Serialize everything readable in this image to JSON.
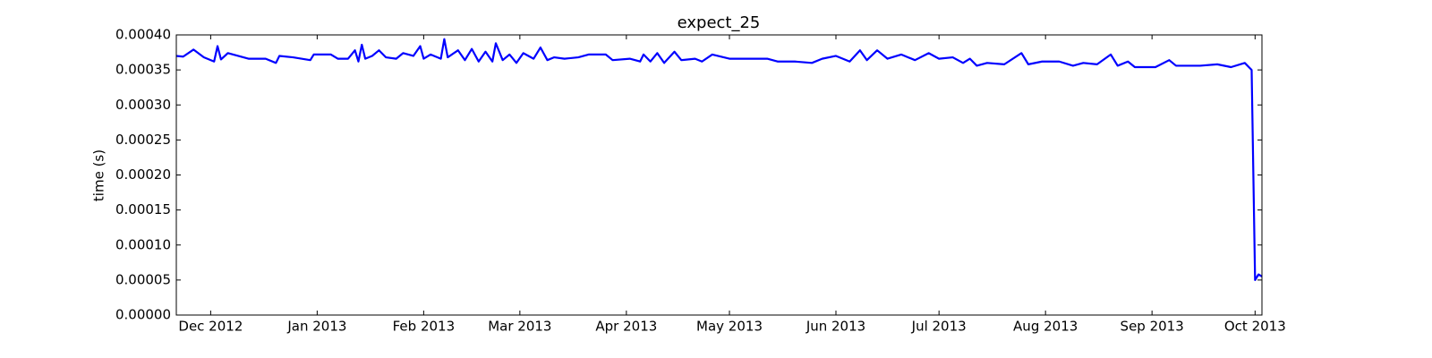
{
  "chart_data": {
    "type": "line",
    "title": "expect_25",
    "y_label": "time (s)",
    "xlim": [
      "2012-11-21",
      "2013-10-03"
    ],
    "xticks": [
      {
        "value": "2012-12-01",
        "label": "Dec 2012"
      },
      {
        "value": "2013-01-01",
        "label": "Jan 2013"
      },
      {
        "value": "2013-02-01",
        "label": "Feb 2013"
      },
      {
        "value": "2013-03-01",
        "label": "Mar 2013"
      },
      {
        "value": "2013-04-01",
        "label": "Apr 2013"
      },
      {
        "value": "2013-05-01",
        "label": "May 2013"
      },
      {
        "value": "2013-06-01",
        "label": "Jun 2013"
      },
      {
        "value": "2013-07-01",
        "label": "Jul 2013"
      },
      {
        "value": "2013-08-01",
        "label": "Aug 2013"
      },
      {
        "value": "2013-09-01",
        "label": "Sep 2013"
      },
      {
        "value": "2013-10-01",
        "label": "Oct 2013"
      }
    ],
    "ylim": [
      0,
      0.0004
    ],
    "yticks": [
      {
        "value": 0,
        "label": "0.00000"
      },
      {
        "value": 5e-05,
        "label": "0.00005"
      },
      {
        "value": 0.0001,
        "label": "0.00010"
      },
      {
        "value": 0.00015,
        "label": "0.00015"
      },
      {
        "value": 0.0002,
        "label": "0.00020"
      },
      {
        "value": 0.00025,
        "label": "0.00025"
      },
      {
        "value": 0.0003,
        "label": "0.00030"
      },
      {
        "value": 0.00035,
        "label": "0.00035"
      },
      {
        "value": 0.0004,
        "label": "0.00040"
      }
    ],
    "grid": false,
    "x": [
      "2012-11-21",
      "2012-11-23",
      "2012-11-26",
      "2012-11-29",
      "2012-12-02",
      "2012-12-03",
      "2012-12-04",
      "2012-12-06",
      "2012-12-09",
      "2012-12-12",
      "2012-12-17",
      "2012-12-20",
      "2012-12-21",
      "2012-12-25",
      "2012-12-30",
      "2012-12-31",
      "2013-01-05",
      "2013-01-07",
      "2013-01-10",
      "2013-01-12",
      "2013-01-13",
      "2013-01-14",
      "2013-01-15",
      "2013-01-17",
      "2013-01-19",
      "2013-01-21",
      "2013-01-24",
      "2013-01-26",
      "2013-01-29",
      "2013-01-31",
      "2013-02-01",
      "2013-02-03",
      "2013-02-06",
      "2013-02-07",
      "2013-02-08",
      "2013-02-11",
      "2013-02-13",
      "2013-02-15",
      "2013-02-17",
      "2013-02-19",
      "2013-02-21",
      "2013-02-22",
      "2013-02-24",
      "2013-02-26",
      "2013-02-28",
      "2013-03-02",
      "2013-03-05",
      "2013-03-07",
      "2013-03-09",
      "2013-03-11",
      "2013-03-14",
      "2013-03-18",
      "2013-03-21",
      "2013-03-26",
      "2013-03-28",
      "2013-04-02",
      "2013-04-05",
      "2013-04-06",
      "2013-04-08",
      "2013-04-10",
      "2013-04-12",
      "2013-04-15",
      "2013-04-17",
      "2013-04-21",
      "2013-04-23",
      "2013-04-26",
      "2013-05-01",
      "2013-05-05",
      "2013-05-12",
      "2013-05-15",
      "2013-05-20",
      "2013-05-25",
      "2013-05-28",
      "2013-06-01",
      "2013-06-05",
      "2013-06-08",
      "2013-06-10",
      "2013-06-13",
      "2013-06-16",
      "2013-06-20",
      "2013-06-24",
      "2013-06-28",
      "2013-07-01",
      "2013-07-05",
      "2013-07-08",
      "2013-07-10",
      "2013-07-12",
      "2013-07-15",
      "2013-07-20",
      "2013-07-25",
      "2013-07-27",
      "2013-07-31",
      "2013-08-05",
      "2013-08-09",
      "2013-08-12",
      "2013-08-16",
      "2013-08-20",
      "2013-08-22",
      "2013-08-25",
      "2013-08-27",
      "2013-09-02",
      "2013-09-06",
      "2013-09-08",
      "2013-09-15",
      "2013-09-20",
      "2013-09-24",
      "2013-09-28",
      "2013-09-30",
      "2013-10-01",
      "2013-10-02",
      "2013-10-03"
    ],
    "series": [
      {
        "color": "#0000ff",
        "values": [
          0.00037,
          0.000369,
          0.000379,
          0.000368,
          0.000362,
          0.000384,
          0.000365,
          0.000374,
          0.00037,
          0.000366,
          0.000366,
          0.00036,
          0.00037,
          0.000368,
          0.000364,
          0.000372,
          0.000372,
          0.000366,
          0.000366,
          0.000378,
          0.000362,
          0.000386,
          0.000366,
          0.00037,
          0.000378,
          0.000368,
          0.000366,
          0.000374,
          0.00037,
          0.000384,
          0.000366,
          0.000372,
          0.000366,
          0.000394,
          0.000368,
          0.000378,
          0.000364,
          0.00038,
          0.000362,
          0.000376,
          0.000362,
          0.000388,
          0.000364,
          0.000372,
          0.00036,
          0.000374,
          0.000366,
          0.000382,
          0.000364,
          0.000368,
          0.000366,
          0.000368,
          0.000372,
          0.000372,
          0.000364,
          0.000366,
          0.000362,
          0.000372,
          0.000362,
          0.000374,
          0.00036,
          0.000376,
          0.000364,
          0.000366,
          0.000362,
          0.000372,
          0.000366,
          0.000366,
          0.000366,
          0.000362,
          0.000362,
          0.00036,
          0.000366,
          0.00037,
          0.000362,
          0.000378,
          0.000364,
          0.000378,
          0.000366,
          0.000372,
          0.000364,
          0.000374,
          0.000366,
          0.000368,
          0.00036,
          0.000366,
          0.000356,
          0.00036,
          0.000358,
          0.000374,
          0.000358,
          0.000362,
          0.000362,
          0.000356,
          0.00036,
          0.000358,
          0.000372,
          0.000356,
          0.000362,
          0.000354,
          0.000354,
          0.000364,
          0.000356,
          0.000356,
          0.000358,
          0.000354,
          0.00036,
          0.00035,
          5e-05,
          5.8e-05,
          5.5e-05
        ]
      }
    ]
  }
}
